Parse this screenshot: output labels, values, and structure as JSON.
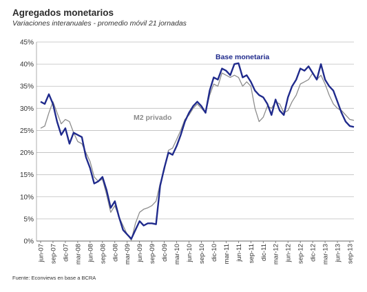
{
  "header": {
    "title": "Agregados monetarios",
    "subtitle": "Variaciones interanuales - promedio móvil 21 jornadas"
  },
  "footer": {
    "source": "Fuente: Econviews en base a BCRA"
  },
  "chart_data": {
    "type": "line",
    "ylim": [
      0,
      45
    ],
    "y_ticks": [
      "0%",
      "5%",
      "10%",
      "15%",
      "20%",
      "25%",
      "30%",
      "35%",
      "40%",
      "45%"
    ],
    "x_tick_labels": [
      "jun-07",
      "sep-07",
      "dic-07",
      "mar-08",
      "jun-08",
      "sep-08",
      "dic-08",
      "mar-09",
      "jun-09",
      "sep-09",
      "dic-09",
      "mar-10",
      "jun-10",
      "sep-10",
      "dic-10",
      "mar-11",
      "jun-11",
      "sep-11",
      "dic-11",
      "mar-12",
      "jun-12",
      "sep-12",
      "dic-12",
      "mar-13",
      "jun-13",
      "sep-13"
    ],
    "grid": "horizontal",
    "series": [
      {
        "name": "Base monetaria",
        "color": "#1f2a8c",
        "points": [
          [
            "jun-07",
            31.5
          ],
          [
            "jul-07",
            31.0
          ],
          [
            "ago-07",
            33.2
          ],
          [
            "sep-07",
            31.0
          ],
          [
            "oct-07",
            27.0
          ],
          [
            "nov-07",
            24.0
          ],
          [
            "dic-07",
            25.5
          ],
          [
            "ene-08",
            22.0
          ],
          [
            "feb-08",
            24.5
          ],
          [
            "mar-08",
            24.0
          ],
          [
            "abr-08",
            23.5
          ],
          [
            "may-08",
            19.0
          ],
          [
            "jun-08",
            16.5
          ],
          [
            "jul-08",
            13.0
          ],
          [
            "ago-08",
            13.5
          ],
          [
            "sep-08",
            14.5
          ],
          [
            "oct-08",
            11.5
          ],
          [
            "nov-08",
            7.5
          ],
          [
            "dic-08",
            9.0
          ],
          [
            "ene-09",
            5.5
          ],
          [
            "feb-09",
            2.5
          ],
          [
            "mar-09",
            1.5
          ],
          [
            "abr-09",
            0.5
          ],
          [
            "may-09",
            2.5
          ],
          [
            "jun-09",
            4.5
          ],
          [
            "jul-09",
            3.5
          ],
          [
            "ago-09",
            4.0
          ],
          [
            "sep-09",
            4.0
          ],
          [
            "oct-09",
            3.8
          ],
          [
            "nov-09",
            12.5
          ],
          [
            "dic-09",
            16.5
          ],
          [
            "ene-10",
            20.0
          ],
          [
            "feb-10",
            19.5
          ],
          [
            "mar-10",
            21.5
          ],
          [
            "abr-10",
            24.0
          ],
          [
            "may-10",
            27.0
          ],
          [
            "jun-10",
            29.0
          ],
          [
            "jul-10",
            30.5
          ],
          [
            "ago-10",
            31.5
          ],
          [
            "sep-10",
            30.5
          ],
          [
            "oct-10",
            29.0
          ],
          [
            "nov-10",
            34.0
          ],
          [
            "dic-10",
            37.0
          ],
          [
            "ene-11",
            36.5
          ],
          [
            "feb-11",
            39.0
          ],
          [
            "mar-11",
            38.5
          ],
          [
            "abr-11",
            37.5
          ],
          [
            "may-11",
            40.0
          ],
          [
            "jun-11",
            40.2
          ],
          [
            "jul-11",
            37.0
          ],
          [
            "ago-11",
            37.5
          ],
          [
            "sep-11",
            36.0
          ],
          [
            "oct-11",
            34.0
          ],
          [
            "nov-11",
            33.0
          ],
          [
            "dic-11",
            32.5
          ],
          [
            "ene-12",
            31.0
          ],
          [
            "feb-12",
            28.5
          ],
          [
            "mar-12",
            32.0
          ],
          [
            "abr-12",
            29.5
          ],
          [
            "may-12",
            28.5
          ],
          [
            "jun-12",
            32.5
          ],
          [
            "jul-12",
            35.0
          ],
          [
            "ago-12",
            36.5
          ],
          [
            "sep-12",
            39.0
          ],
          [
            "oct-12",
            38.5
          ],
          [
            "nov-12",
            39.5
          ],
          [
            "dic-12",
            38.0
          ],
          [
            "ene-13",
            36.5
          ],
          [
            "feb-13",
            40.0
          ],
          [
            "mar-13",
            36.5
          ],
          [
            "abr-13",
            35.0
          ],
          [
            "may-13",
            34.0
          ],
          [
            "jun-13",
            31.5
          ],
          [
            "jul-13",
            29.0
          ],
          [
            "ago-13",
            27.0
          ],
          [
            "sep-13",
            26.0
          ],
          [
            "oct-13",
            25.8
          ]
        ]
      },
      {
        "name": "M2 privado",
        "color": "#8c8c8c",
        "points": [
          [
            "jun-07",
            25.5
          ],
          [
            "jul-07",
            26.0
          ],
          [
            "ago-07",
            29.0
          ],
          [
            "sep-07",
            31.5
          ],
          [
            "oct-07",
            29.0
          ],
          [
            "nov-07",
            26.5
          ],
          [
            "dic-07",
            27.5
          ],
          [
            "ene-08",
            27.0
          ],
          [
            "feb-08",
            24.5
          ],
          [
            "mar-08",
            22.5
          ],
          [
            "abr-08",
            22.0
          ],
          [
            "may-08",
            20.0
          ],
          [
            "jun-08",
            18.0
          ],
          [
            "jul-08",
            14.5
          ],
          [
            "ago-08",
            13.5
          ],
          [
            "sep-08",
            14.0
          ],
          [
            "oct-08",
            10.5
          ],
          [
            "nov-08",
            6.5
          ],
          [
            "dic-08",
            8.0
          ],
          [
            "ene-09",
            5.5
          ],
          [
            "feb-09",
            3.5
          ],
          [
            "mar-09",
            1.5
          ],
          [
            "abr-09",
            0.2
          ],
          [
            "may-09",
            4.0
          ],
          [
            "jun-09",
            6.5
          ],
          [
            "jul-09",
            7.2
          ],
          [
            "ago-09",
            7.5
          ],
          [
            "sep-09",
            8.0
          ],
          [
            "oct-09",
            9.0
          ],
          [
            "nov-09",
            13.0
          ],
          [
            "dic-09",
            16.0
          ],
          [
            "ene-10",
            20.5
          ],
          [
            "feb-10",
            21.0
          ],
          [
            "mar-10",
            23.0
          ],
          [
            "abr-10",
            25.0
          ],
          [
            "may-10",
            27.5
          ],
          [
            "jun-10",
            28.5
          ],
          [
            "jul-10",
            30.0
          ],
          [
            "ago-10",
            31.0
          ],
          [
            "sep-10",
            30.0
          ],
          [
            "oct-10",
            29.0
          ],
          [
            "nov-10",
            33.0
          ],
          [
            "dic-10",
            35.5
          ],
          [
            "ene-11",
            35.0
          ],
          [
            "feb-11",
            38.0
          ],
          [
            "mar-11",
            37.5
          ],
          [
            "abr-11",
            37.0
          ],
          [
            "may-11",
            37.5
          ],
          [
            "jun-11",
            37.0
          ],
          [
            "jul-11",
            35.0
          ],
          [
            "ago-11",
            36.0
          ],
          [
            "sep-11",
            35.0
          ],
          [
            "oct-11",
            30.0
          ],
          [
            "nov-11",
            27.0
          ],
          [
            "dic-11",
            28.0
          ],
          [
            "ene-12",
            30.5
          ],
          [
            "feb-12",
            30.0
          ],
          [
            "mar-12",
            31.5
          ],
          [
            "abr-12",
            31.0
          ],
          [
            "may-12",
            29.0
          ],
          [
            "jun-12",
            29.5
          ],
          [
            "jul-12",
            31.5
          ],
          [
            "ago-12",
            33.0
          ],
          [
            "sep-12",
            35.5
          ],
          [
            "oct-12",
            36.0
          ],
          [
            "nov-12",
            36.5
          ],
          [
            "dic-12",
            38.0
          ],
          [
            "ene-13",
            36.5
          ],
          [
            "feb-13",
            37.5
          ],
          [
            "mar-13",
            35.5
          ],
          [
            "abr-13",
            33.0
          ],
          [
            "may-13",
            31.0
          ],
          [
            "jun-13",
            30.0
          ],
          [
            "jul-13",
            29.5
          ],
          [
            "ago-13",
            28.5
          ],
          [
            "sep-13",
            27.5
          ],
          [
            "oct-13",
            27.3
          ]
        ]
      }
    ]
  }
}
